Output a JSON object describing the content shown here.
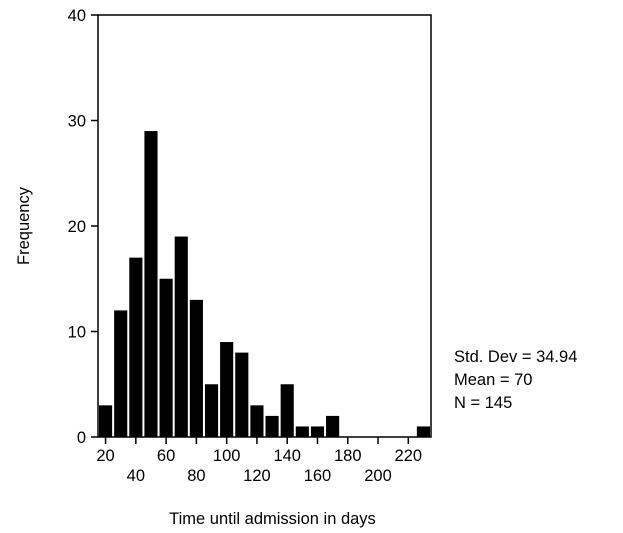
{
  "chart_data": {
    "type": "bar",
    "xlabel": "Time until admission in days",
    "ylabel": "Frequency",
    "ylim": [
      0,
      40
    ],
    "yticks": [
      0,
      10,
      20,
      30,
      40
    ],
    "xlim": [
      15,
      235
    ],
    "xticks": [
      20,
      40,
      60,
      80,
      100,
      120,
      140,
      160,
      180,
      200,
      220
    ],
    "bin_width": 10,
    "bin_centers": [
      20,
      30,
      40,
      50,
      60,
      70,
      80,
      90,
      100,
      110,
      120,
      130,
      140,
      150,
      160,
      170,
      180,
      190,
      200,
      210,
      220,
      230
    ],
    "values": [
      3,
      12,
      17,
      29,
      15,
      19,
      13,
      5,
      9,
      8,
      3,
      2,
      5,
      1,
      1,
      2,
      0,
      0,
      0,
      0,
      0,
      1
    ],
    "grid": false
  },
  "stats": {
    "std_dev": "Std. Dev = 34.94",
    "mean": "Mean = 70",
    "n": "N = 145"
  }
}
